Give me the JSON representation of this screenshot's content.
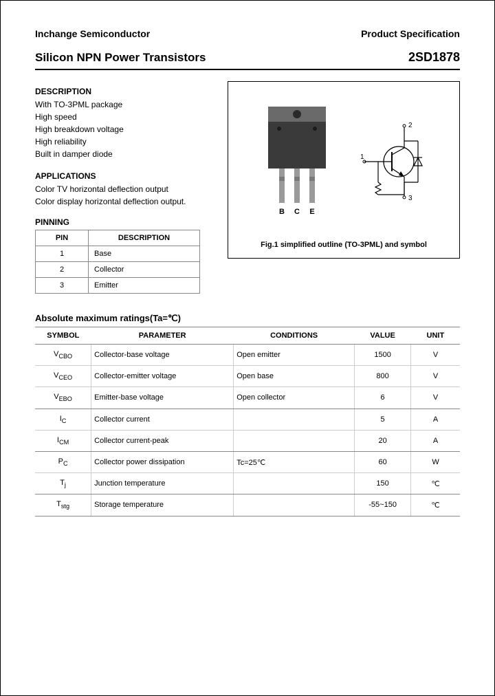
{
  "header": {
    "company": "Inchange Semiconductor",
    "doc_type": "Product Specification"
  },
  "title": {
    "left": "Silicon NPN Power Transistors",
    "right": "2SD1878"
  },
  "description": {
    "heading": "DESCRIPTION",
    "lines": [
      "With TO-3PML package",
      "High speed",
      "High breakdown voltage",
      "High reliability",
      "Built in damper diode"
    ]
  },
  "applications": {
    "heading": "APPLICATIONS",
    "lines": [
      "Color TV horizontal deflection output",
      "Color display horizontal deflection output."
    ]
  },
  "pinning": {
    "heading": "PINNING",
    "col_pin": "PIN",
    "col_desc": "DESCRIPTION",
    "rows": [
      {
        "pin": "1",
        "desc": "Base"
      },
      {
        "pin": "2",
        "desc": "Collector"
      },
      {
        "pin": "3",
        "desc": "Emitter"
      }
    ]
  },
  "figure": {
    "caption": "Fig.1 simplified outline (TO-3PML) and symbol",
    "pin_labels": {
      "b": "B",
      "c": "C",
      "e": "E"
    },
    "symbol_pins": {
      "p1": "1",
      "p2": "2",
      "p3": "3"
    },
    "package_color_body": "#3a3a3a",
    "package_color_tab": "#6a6a6a",
    "lead_color": "#9a9a9a"
  },
  "ratings": {
    "title": "Absolute maximum ratings(Ta=℃)",
    "columns": {
      "symbol": "SYMBOL",
      "parameter": "PARAMETER",
      "conditions": "CONDITIONS",
      "value": "VALUE",
      "unit": "UNIT"
    },
    "rows": [
      {
        "sym": "V",
        "sub": "CBO",
        "param": "Collector-base voltage",
        "cond": "Open emitter",
        "val": "1500",
        "unit": "V",
        "sep": false
      },
      {
        "sym": "V",
        "sub": "CEO",
        "param": "Collector-emitter voltage",
        "cond": "Open base",
        "val": "800",
        "unit": "V",
        "sep": false
      },
      {
        "sym": "V",
        "sub": "EBO",
        "param": "Emitter-base voltage",
        "cond": "Open collector",
        "val": "6",
        "unit": "V",
        "sep": true
      },
      {
        "sym": "I",
        "sub": "C",
        "param": "Collector current",
        "cond": "",
        "val": "5",
        "unit": "A",
        "sep": false
      },
      {
        "sym": "I",
        "sub": "CM",
        "param": "Collector current-peak",
        "cond": "",
        "val": "20",
        "unit": "A",
        "sep": true
      },
      {
        "sym": "P",
        "sub": "C",
        "param": "Collector power dissipation",
        "cond": "Tc=25℃",
        "val": "60",
        "unit": "W",
        "sep": false
      },
      {
        "sym": "T",
        "sub": "j",
        "param": "Junction temperature",
        "cond": "",
        "val": "150",
        "unit": "℃",
        "sep": true
      },
      {
        "sym": "T",
        "sub": "stg",
        "param": "Storage temperature",
        "cond": "",
        "val": "-55~150",
        "unit": "℃",
        "sep": true
      }
    ]
  }
}
